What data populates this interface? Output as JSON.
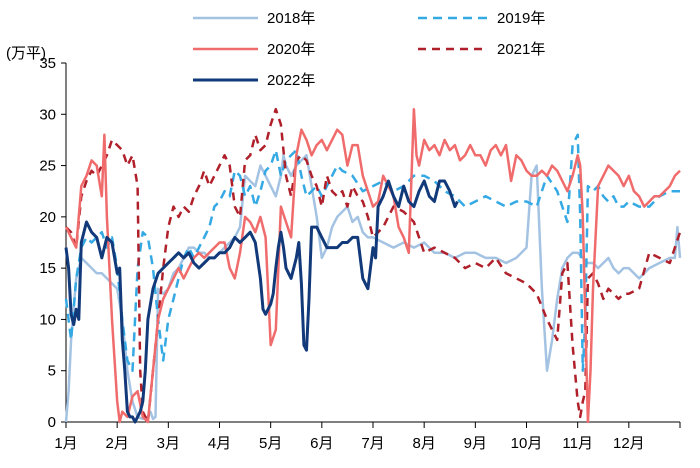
{
  "chart_data": {
    "type": "line",
    "unit_label": "(万平)",
    "ylim": [
      0,
      35
    ],
    "yticks": [
      "0",
      "5",
      "10",
      "15",
      "20",
      "25",
      "30",
      "35"
    ],
    "x_domain": [
      0,
      12
    ],
    "xticks": [
      "1月",
      "2月",
      "3月",
      "4月",
      "5月",
      "6月",
      "7月",
      "8月",
      "9月",
      "10月",
      "11月",
      "12月"
    ],
    "legend_position": "top",
    "series": [
      {
        "name": "2018年",
        "color": "#a4c3e3",
        "dash": "solid",
        "width": 2.5,
        "x": [
          0.0,
          0.05,
          0.1,
          0.2,
          0.3,
          0.4,
          0.5,
          0.6,
          0.7,
          0.8,
          0.9,
          1.0,
          1.1,
          1.2,
          1.3,
          1.4,
          1.5,
          1.6,
          1.65,
          1.7,
          1.75,
          1.8,
          1.9,
          2.0,
          2.1,
          2.2,
          2.3,
          2.4,
          2.5,
          2.6,
          2.7,
          2.8,
          2.9,
          3.0,
          3.1,
          3.2,
          3.3,
          3.4,
          3.5,
          3.6,
          3.7,
          3.8,
          3.9,
          4.0,
          4.1,
          4.2,
          4.25,
          4.3,
          4.4,
          4.5,
          4.6,
          4.7,
          4.8,
          4.9,
          5.0,
          5.1,
          5.2,
          5.3,
          5.4,
          5.5,
          5.6,
          5.7,
          5.8,
          5.9,
          6.0,
          6.2,
          6.4,
          6.6,
          6.8,
          7.0,
          7.2,
          7.4,
          7.6,
          7.8,
          8.0,
          8.2,
          8.4,
          8.6,
          8.8,
          9.0,
          9.1,
          9.2,
          9.3,
          9.4,
          9.5,
          9.6,
          9.7,
          9.8,
          9.9,
          10.0,
          10.1,
          10.2,
          10.3,
          10.4,
          10.5,
          10.6,
          10.7,
          10.8,
          10.9,
          11.0,
          11.2,
          11.4,
          11.6,
          11.8,
          11.9,
          11.95,
          12.0
        ],
        "y": [
          0.0,
          3.0,
          8.0,
          14.0,
          16.0,
          15.5,
          15.0,
          14.5,
          14.5,
          14.0,
          13.5,
          13.0,
          10.0,
          5.0,
          2.0,
          0.5,
          0.3,
          0.5,
          1.0,
          0.3,
          0.5,
          13.0,
          12.5,
          13.0,
          14.5,
          15.0,
          16.0,
          17.0,
          17.0,
          16.5,
          16.5,
          16.0,
          16.0,
          16.5,
          17.0,
          17.5,
          18.0,
          19.0,
          24.0,
          23.5,
          23.0,
          25.0,
          24.0,
          23.0,
          22.0,
          24.0,
          26.0,
          25.0,
          24.0,
          25.0,
          25.5,
          26.0,
          23.0,
          20.0,
          16.0,
          17.0,
          19.0,
          20.0,
          20.5,
          21.0,
          19.5,
          20.0,
          18.5,
          18.0,
          18.0,
          17.5,
          17.0,
          17.5,
          17.0,
          17.5,
          16.5,
          16.5,
          16.0,
          16.5,
          16.5,
          16.0,
          16.0,
          15.5,
          16.0,
          17.0,
          24.0,
          25.0,
          13.0,
          5.0,
          8.0,
          12.0,
          15.0,
          16.0,
          16.5,
          16.5,
          16.0,
          15.5,
          15.5,
          15.0,
          15.5,
          16.0,
          15.0,
          14.5,
          15.0,
          15.0,
          14.0,
          15.0,
          15.5,
          16.0,
          16.0,
          19.0,
          16.0
        ]
      },
      {
        "name": "2019年",
        "color": "#35a9e4",
        "dash": "9,6",
        "width": 2.5,
        "x": [
          0.0,
          0.1,
          0.2,
          0.3,
          0.4,
          0.5,
          0.6,
          0.7,
          0.8,
          0.9,
          1.0,
          1.1,
          1.2,
          1.3,
          1.4,
          1.5,
          1.6,
          1.7,
          1.8,
          1.9,
          2.0,
          2.1,
          2.2,
          2.3,
          2.4,
          2.5,
          2.6,
          2.7,
          2.8,
          2.9,
          3.0,
          3.1,
          3.2,
          3.3,
          3.4,
          3.5,
          3.6,
          3.7,
          3.8,
          3.9,
          4.0,
          4.1,
          4.2,
          4.3,
          4.4,
          4.5,
          4.6,
          4.7,
          4.8,
          4.9,
          5.0,
          5.1,
          5.2,
          5.3,
          5.4,
          5.6,
          5.8,
          6.0,
          6.2,
          6.4,
          6.6,
          6.8,
          7.0,
          7.2,
          7.4,
          7.6,
          7.8,
          8.0,
          8.2,
          8.4,
          8.6,
          8.8,
          9.0,
          9.2,
          9.4,
          9.6,
          9.8,
          9.9,
          10.0,
          10.05,
          10.1,
          10.15,
          10.2,
          10.3,
          10.4,
          10.5,
          10.6,
          10.7,
          10.8,
          10.9,
          11.0,
          11.2,
          11.4,
          11.6,
          11.8,
          12.0
        ],
        "y": [
          12.0,
          8.0,
          14.0,
          17.0,
          18.0,
          17.5,
          18.0,
          18.5,
          17.0,
          18.0,
          15.0,
          10.0,
          6.0,
          5.0,
          15.0,
          18.5,
          18.0,
          15.0,
          10.0,
          6.0,
          10.0,
          12.0,
          14.0,
          16.0,
          17.0,
          16.0,
          17.0,
          18.0,
          19.0,
          21.0,
          21.5,
          22.5,
          22.0,
          24.5,
          24.0,
          22.0,
          23.0,
          21.0,
          22.5,
          24.5,
          25.0,
          26.5,
          24.0,
          25.5,
          26.0,
          26.5,
          24.0,
          22.0,
          22.5,
          23.0,
          22.0,
          23.0,
          24.0,
          25.0,
          24.5,
          24.0,
          22.5,
          23.0,
          23.5,
          22.5,
          23.0,
          24.0,
          24.0,
          23.5,
          22.5,
          22.0,
          21.0,
          21.5,
          22.0,
          21.5,
          21.0,
          21.5,
          21.5,
          21.0,
          24.0,
          22.5,
          19.5,
          27.0,
          28.0,
          20.0,
          5.0,
          10.0,
          23.0,
          22.5,
          23.0,
          22.0,
          21.5,
          22.0,
          21.0,
          21.0,
          21.5,
          21.0,
          21.0,
          22.0,
          22.5,
          22.5
        ]
      },
      {
        "name": "2020年",
        "color": "#f06b6b",
        "dash": "solid",
        "width": 2.5,
        "x": [
          0.0,
          0.1,
          0.2,
          0.3,
          0.4,
          0.5,
          0.6,
          0.7,
          0.75,
          0.8,
          0.9,
          1.0,
          1.05,
          1.1,
          1.2,
          1.3,
          1.4,
          1.5,
          1.6,
          1.7,
          1.8,
          1.9,
          2.0,
          2.1,
          2.2,
          2.3,
          2.4,
          2.5,
          2.6,
          2.7,
          2.8,
          2.9,
          3.0,
          3.1,
          3.2,
          3.3,
          3.4,
          3.5,
          3.6,
          3.7,
          3.8,
          3.9,
          4.0,
          4.1,
          4.2,
          4.3,
          4.4,
          4.5,
          4.6,
          4.7,
          4.8,
          4.9,
          5.0,
          5.1,
          5.2,
          5.3,
          5.4,
          5.5,
          5.6,
          5.7,
          5.8,
          5.9,
          6.0,
          6.1,
          6.2,
          6.3,
          6.4,
          6.5,
          6.6,
          6.7,
          6.8,
          6.85,
          6.9,
          7.0,
          7.1,
          7.2,
          7.3,
          7.4,
          7.5,
          7.6,
          7.7,
          7.8,
          7.9,
          8.0,
          8.1,
          8.2,
          8.3,
          8.4,
          8.5,
          8.6,
          8.7,
          8.8,
          8.9,
          9.0,
          9.1,
          9.2,
          9.3,
          9.4,
          9.5,
          9.6,
          9.7,
          9.8,
          9.9,
          10.0,
          10.05,
          10.1,
          10.15,
          10.2,
          10.25,
          10.3,
          10.4,
          10.5,
          10.6,
          10.7,
          10.8,
          10.9,
          11.0,
          11.1,
          11.2,
          11.3,
          11.4,
          11.5,
          11.6,
          11.7,
          11.8,
          11.9,
          12.0
        ],
        "y": [
          19.0,
          18.0,
          17.0,
          23.0,
          24.0,
          25.5,
          25.0,
          22.0,
          28.0,
          20.0,
          10.0,
          2.0,
          0.0,
          1.0,
          0.5,
          2.5,
          3.0,
          0.5,
          0.0,
          5.0,
          10.0,
          12.0,
          13.0,
          14.0,
          15.0,
          14.0,
          15.0,
          16.0,
          16.5,
          16.0,
          16.5,
          17.0,
          17.5,
          17.5,
          15.0,
          14.0,
          16.5,
          20.0,
          19.5,
          18.5,
          20.0,
          18.0,
          7.5,
          9.0,
          21.0,
          19.5,
          18.0,
          26.0,
          28.5,
          27.5,
          26.0,
          27.0,
          27.5,
          26.5,
          27.5,
          28.5,
          28.0,
          25.0,
          27.0,
          27.0,
          24.0,
          22.5,
          21.0,
          21.5,
          24.0,
          23.0,
          22.0,
          19.0,
          18.0,
          16.5,
          30.5,
          26.0,
          25.0,
          27.5,
          26.5,
          27.0,
          26.0,
          27.5,
          26.5,
          27.0,
          25.5,
          26.0,
          27.0,
          26.0,
          26.0,
          25.0,
          26.5,
          27.0,
          26.0,
          27.0,
          23.5,
          26.0,
          25.5,
          24.5,
          24.0,
          24.0,
          24.5,
          24.0,
          25.0,
          24.5,
          23.5,
          22.5,
          24.0,
          26.0,
          25.0,
          20.0,
          10.0,
          0.0,
          5.0,
          13.0,
          23.0,
          24.0,
          25.0,
          24.5,
          24.0,
          23.0,
          24.0,
          22.5,
          22.0,
          21.0,
          21.5,
          22.0,
          22.0,
          22.5,
          23.0,
          24.0,
          24.5
        ]
      },
      {
        "name": "2021年",
        "color": "#b0202a",
        "dash": "8,6",
        "width": 2.5,
        "x": [
          0.0,
          0.1,
          0.2,
          0.3,
          0.4,
          0.5,
          0.6,
          0.7,
          0.8,
          0.9,
          1.0,
          1.1,
          1.2,
          1.3,
          1.4,
          1.45,
          1.5,
          1.6,
          1.7,
          1.8,
          1.9,
          2.0,
          2.1,
          2.2,
          2.3,
          2.4,
          2.5,
          2.6,
          2.7,
          2.8,
          2.9,
          3.0,
          3.1,
          3.2,
          3.3,
          3.4,
          3.5,
          3.6,
          3.7,
          3.8,
          3.9,
          4.0,
          4.1,
          4.2,
          4.3,
          4.4,
          4.5,
          4.6,
          4.7,
          4.8,
          4.9,
          5.0,
          5.1,
          5.2,
          5.3,
          5.4,
          5.5,
          5.6,
          5.7,
          5.8,
          5.9,
          6.0,
          6.2,
          6.4,
          6.6,
          6.8,
          7.0,
          7.2,
          7.4,
          7.6,
          7.8,
          8.0,
          8.2,
          8.4,
          8.6,
          8.8,
          9.0,
          9.2,
          9.4,
          9.6,
          9.7,
          9.8,
          9.9,
          10.0,
          10.05,
          10.1,
          10.15,
          10.2,
          10.3,
          10.4,
          10.5,
          10.6,
          10.7,
          10.8,
          10.9,
          11.0,
          11.2,
          11.4,
          11.6,
          11.8,
          12.0
        ],
        "y": [
          19.0,
          18.5,
          17.0,
          22.0,
          23.5,
          24.5,
          24.0,
          25.0,
          26.0,
          27.5,
          27.0,
          26.5,
          25.0,
          26.0,
          23.0,
          5.0,
          1.0,
          0.0,
          5.0,
          10.0,
          15.0,
          19.0,
          21.0,
          20.0,
          21.0,
          20.5,
          22.0,
          23.0,
          24.5,
          23.0,
          24.0,
          25.0,
          26.0,
          25.0,
          21.0,
          20.0,
          25.5,
          26.0,
          28.0,
          26.5,
          27.0,
          29.0,
          30.5,
          29.0,
          24.0,
          22.0,
          25.5,
          26.0,
          25.5,
          24.0,
          23.0,
          21.0,
          24.0,
          22.5,
          22.0,
          22.5,
          21.0,
          23.0,
          22.0,
          21.5,
          20.0,
          18.0,
          19.0,
          21.0,
          20.5,
          19.5,
          16.5,
          17.0,
          16.5,
          16.0,
          15.0,
          15.5,
          15.0,
          16.0,
          14.5,
          14.0,
          13.5,
          12.5,
          10.0,
          8.0,
          14.5,
          15.5,
          7.5,
          2.0,
          0.5,
          2.0,
          3.0,
          14.0,
          14.5,
          13.5,
          12.0,
          13.0,
          12.5,
          12.0,
          12.5,
          12.5,
          13.0,
          16.5,
          16.0,
          15.5,
          18.5
        ]
      },
      {
        "name": "2022年",
        "color": "#123a7a",
        "dash": "solid",
        "width": 3,
        "x": [
          0.0,
          0.05,
          0.1,
          0.15,
          0.2,
          0.25,
          0.3,
          0.35,
          0.4,
          0.5,
          0.6,
          0.7,
          0.8,
          0.9,
          1.0,
          1.05,
          1.1,
          1.15,
          1.2,
          1.25,
          1.3,
          1.35,
          1.4,
          1.45,
          1.5,
          1.55,
          1.6,
          1.7,
          1.8,
          1.9,
          2.0,
          2.1,
          2.2,
          2.3,
          2.4,
          2.5,
          2.6,
          2.7,
          2.8,
          2.9,
          3.0,
          3.1,
          3.2,
          3.3,
          3.4,
          3.5,
          3.6,
          3.7,
          3.8,
          3.85,
          3.9,
          3.95,
          4.0,
          4.05,
          4.1,
          4.15,
          4.2,
          4.25,
          4.3,
          4.4,
          4.5,
          4.55,
          4.6,
          4.65,
          4.7,
          4.75,
          4.8,
          4.9,
          5.0,
          5.1,
          5.2,
          5.3,
          5.4,
          5.5,
          5.6,
          5.7,
          5.8,
          5.9,
          6.0,
          6.05,
          6.1,
          6.2,
          6.3,
          6.4,
          6.5,
          6.6,
          6.7,
          6.8,
          6.9,
          7.0,
          7.1,
          7.2,
          7.3,
          7.4,
          7.5,
          7.6,
          7.65
        ],
        "y": [
          17.0,
          15.0,
          10.5,
          9.5,
          11.0,
          10.0,
          17.5,
          18.5,
          19.5,
          18.5,
          18.0,
          16.0,
          18.0,
          17.5,
          14.5,
          15.0,
          8.0,
          5.0,
          1.0,
          0.5,
          0.5,
          0.0,
          0.5,
          1.0,
          2.0,
          5.0,
          10.0,
          13.0,
          14.5,
          15.0,
          15.5,
          16.0,
          16.5,
          16.0,
          16.5,
          15.5,
          15.0,
          15.5,
          16.0,
          16.0,
          16.5,
          16.5,
          17.0,
          18.0,
          17.5,
          18.0,
          18.5,
          17.5,
          14.0,
          11.0,
          10.5,
          11.0,
          11.5,
          12.5,
          15.0,
          17.0,
          18.5,
          17.0,
          15.0,
          14.0,
          16.0,
          17.5,
          13.5,
          7.5,
          7.0,
          12.0,
          19.0,
          19.0,
          18.0,
          17.0,
          17.0,
          17.0,
          17.5,
          17.5,
          18.0,
          18.0,
          14.0,
          13.0,
          17.0,
          16.0,
          21.0,
          22.0,
          23.5,
          22.0,
          21.0,
          23.0,
          21.5,
          21.0,
          22.5,
          23.5,
          22.0,
          21.5,
          23.5,
          23.5,
          22.5,
          21.0,
          21.5
        ]
      }
    ]
  }
}
